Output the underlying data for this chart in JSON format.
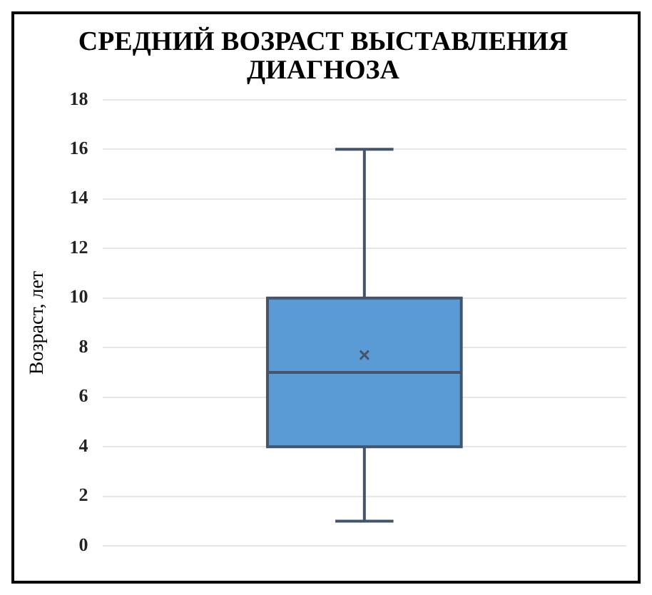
{
  "chart_data": {
    "type": "box",
    "title": "СРЕДНИЙ ВОЗРАСТ ВЫСТАВЛЕНИЯ ДИАГНОЗА",
    "ylabel": "Возраст, лет",
    "categories": [
      null
    ],
    "color": "#5b9bd5",
    "boxes": [
      {
        "low": 1,
        "q1": 4,
        "median": 7,
        "q3": 10,
        "high": 16,
        "mean": 7.7
      }
    ],
    "ylim": [
      0,
      18
    ],
    "yticks": [
      0,
      2,
      4,
      6,
      8,
      10,
      12,
      14,
      16,
      18
    ],
    "grid": "y"
  }
}
